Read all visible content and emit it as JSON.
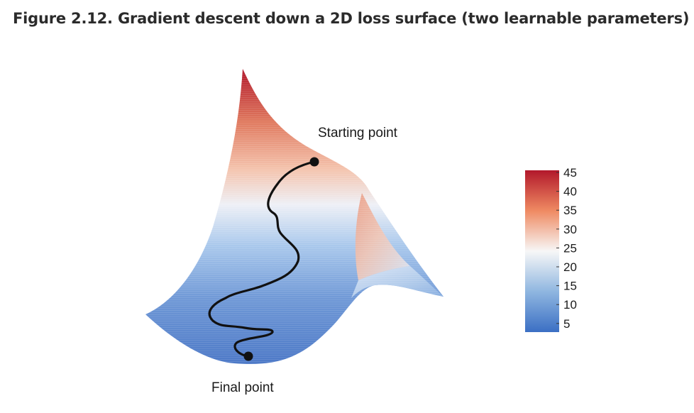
{
  "title": "Figure 2.12. Gradient descent down a 2D loss surface (two learnable parameters)",
  "annotations": {
    "start": "Starting point",
    "end": "Final point"
  },
  "colorbar": {
    "ticks": [
      "45",
      "40",
      "35",
      "30",
      "25",
      "20",
      "15",
      "10",
      "5"
    ],
    "colors": {
      "high": "#b2182b",
      "upper": "#ef8a62",
      "mid": "#f7f7f7",
      "lower": "#8fb6e0",
      "low": "#3b6fc4"
    }
  }
}
